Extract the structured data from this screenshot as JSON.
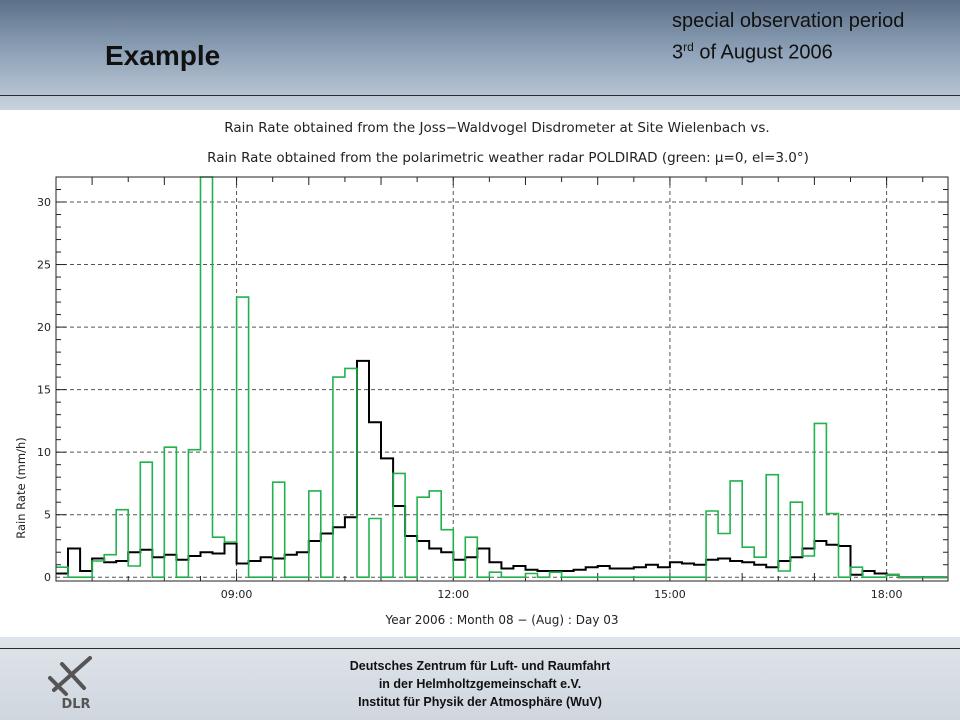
{
  "slide": {
    "title": "Example",
    "subtitle_line1": "special observation period",
    "subtitle_day": "3",
    "subtitle_sup": "rd",
    "subtitle_rest": " of August 2006",
    "logo_text": "DLR",
    "footer": [
      "Deutsches Zentrum für Luft- und Raumfahrt",
      "in der Helmholtzgemeinschaft e.V.",
      "Institut für Physik der Atmosphäre (WuV)"
    ]
  },
  "chart_data": {
    "type": "line",
    "step": true,
    "title_line1": "Rain Rate obtained from the Joss−Waldvogel Disdrometer at Site Wielenbach vs.",
    "title_line2": "Rain Rate obtained from the polarimetric weather radar POLDIRAD (green: μ=0, el=3.0°)",
    "xlabel": "Year 2006 : Month 08 − (Aug) : Day 03",
    "ylabel": "Rain Rate (mm/h)",
    "x_unit": "hour of day",
    "xlim": [
      6.5,
      18.85
    ],
    "ylim": [
      -0.3,
      32
    ],
    "yticks": [
      0,
      5,
      10,
      15,
      20,
      25,
      30
    ],
    "xticks": [
      9,
      12,
      15,
      18
    ],
    "xtick_labels": [
      "09:00",
      "12:00",
      "15:00",
      "18:00"
    ],
    "grid": true,
    "colors": {
      "disdrometer": "#000000",
      "radar": "#22b24c"
    },
    "bin_hours": 0.16667,
    "series": [
      {
        "id": "disdrometer",
        "start": 6.5,
        "values": [
          0.3,
          2.3,
          0.5,
          1.5,
          1.2,
          1.3,
          2.0,
          2.2,
          1.6,
          1.8,
          1.4,
          1.7,
          2.0,
          1.9,
          2.7,
          1.1,
          1.3,
          1.6,
          1.5,
          1.8,
          2.0,
          2.9,
          3.5,
          4.0,
          4.8,
          17.3,
          12.4,
          9.5,
          5.7,
          3.3,
          2.9,
          2.3,
          2.0,
          1.4,
          1.6,
          2.3,
          1.2,
          0.7,
          0.9,
          0.6,
          0.5,
          0.5,
          0.5,
          0.6,
          0.8,
          0.9,
          0.7,
          0.7,
          0.8,
          1.0,
          0.8,
          1.2,
          1.1,
          1.0,
          1.4,
          1.5,
          1.3,
          1.2,
          1.0,
          0.8,
          1.3,
          1.6,
          2.3,
          2.9,
          2.6,
          2.5,
          0.2,
          0.5,
          0.3,
          0.2,
          0.0,
          0.0,
          0.0,
          0.0
        ]
      },
      {
        "id": "radar",
        "start": 6.5,
        "values": [
          0.8,
          0.0,
          0.0,
          1.3,
          1.8,
          5.4,
          0.9,
          9.2,
          0.0,
          10.4,
          0.0,
          10.2,
          32,
          3.2,
          2.8,
          22.4,
          0.0,
          0.0,
          7.6,
          0.0,
          0.0,
          6.9,
          0.0,
          16.0,
          16.7,
          0.0,
          4.7,
          0.0,
          8.3,
          0.0,
          6.4,
          6.9,
          3.8,
          0.0,
          3.2,
          0.0,
          0.4,
          0.0,
          0.0,
          0.3,
          0.0,
          0.4,
          0.0,
          0.0,
          0.0,
          0.0,
          0.0,
          0.0,
          0.0,
          0.0,
          0.0,
          0.0,
          0.0,
          0.0,
          5.3,
          3.5,
          7.7,
          2.4,
          1.6,
          8.2,
          0.5,
          6.0,
          1.7,
          12.3,
          5.1,
          0.0,
          0.8,
          0.0,
          0.0,
          0.2,
          0.0,
          0.0,
          0.0,
          0.0
        ]
      }
    ]
  }
}
